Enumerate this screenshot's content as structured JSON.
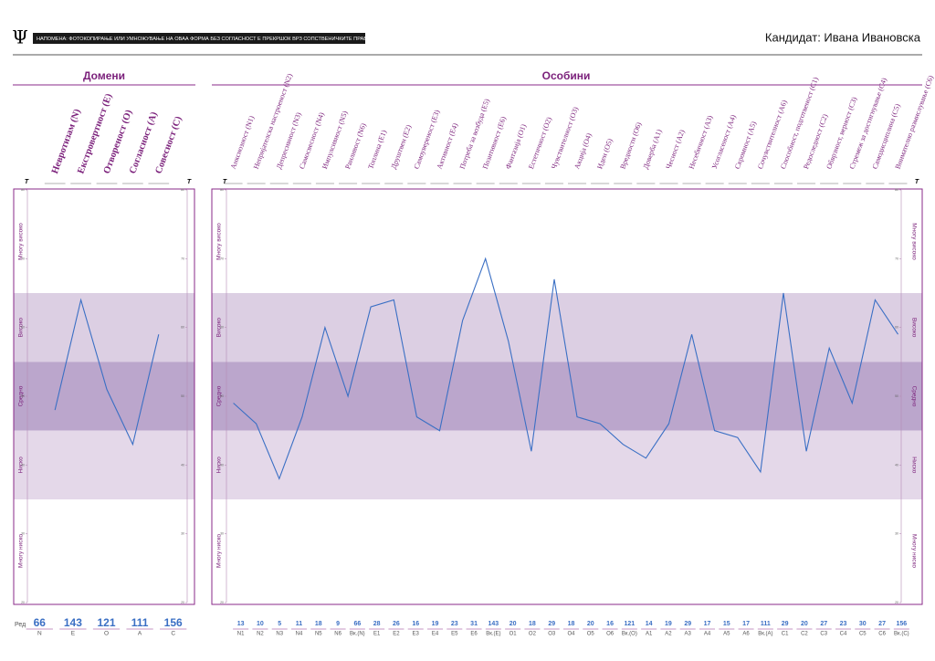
{
  "header": {
    "logo": "Ψ",
    "notice": "НАПОМЕНА: ФОТОКОПИРАЊЕ ИЛИ УМНОЖУВАЊЕ НА ОВАА ФОРМА БЕЗ СОГЛАСНОСТ Е ПРЕКРШОК ВРЗ СОПСТВЕНИЧКИТЕ ПРАВА.",
    "candidate": "Кандидат: Ивана Ивановска"
  },
  "t_label": "T",
  "chart_data": [
    {
      "type": "line",
      "title": "Домени",
      "color": "#3a6fc4",
      "categories": [
        "Невротизам (N)",
        "Екстровертност (E)",
        "Отвореност (O)",
        "Согласност (A)",
        "Совесност (C)"
      ],
      "values": [
        48,
        64,
        51,
        43,
        59
      ],
      "ylim": [
        20,
        80
      ],
      "yticks": [
        20,
        30,
        40,
        50,
        60,
        70,
        80
      ],
      "levels": [
        {
          "label": "Многу високо",
          "from": 65,
          "to": 80,
          "color": "#ffffff"
        },
        {
          "label": "Високо",
          "from": 55,
          "to": 65,
          "color": "#dccfe3"
        },
        {
          "label": "Средно",
          "from": 45,
          "to": 55,
          "color": "#bba6cc"
        },
        {
          "label": "Ниско",
          "from": 35,
          "to": 45,
          "color": "#e4d8e9"
        },
        {
          "label": "Многу ниско",
          "from": 20,
          "to": 35,
          "color": "#ffffff"
        }
      ]
    },
    {
      "type": "line",
      "title": "Особини",
      "color": "#3a6fc4",
      "categories": [
        "Анксиозност (N1)",
        "Непријателска настроеност (N2)",
        "Депресивност (N3)",
        "Самосвесност (N4)",
        "Импулсивност (N5)",
        "Ранливост (N6)",
        "Топлина (E1)",
        "Друштвен (E2)",
        "Самоувереност (E3)",
        "Активност (E4)",
        "Потреба за возбуда (E5)",
        "Позитивност (E6)",
        "Фантазија (O1)",
        "Естетичност (O2)",
        "Чувствителност (O3)",
        "Акција (O4)",
        "Идеи (O5)",
        "Вредности (O6)",
        "Доверба (A1)",
        "Чесност (A2)",
        "Несебичност (A3)",
        "Усогласеност (A4)",
        "Скромност (A5)",
        "Сочувствителност (A6)",
        "Способност, подготвеност (C1)",
        "Редоследност (C2)",
        "Обврзност, верност (C3)",
        "Стремеж за достигнување (C4)",
        "Самодисциплина (C5)",
        "Внимателно размислување (C6)"
      ],
      "values": [
        49,
        46,
        38,
        47,
        60,
        50,
        63,
        64,
        47,
        45,
        61,
        70,
        58,
        42,
        67,
        47,
        46,
        43,
        41,
        46,
        59,
        45,
        44,
        39,
        65,
        42,
        57,
        49,
        64,
        59
      ],
      "ylim": [
        20,
        80
      ],
      "yticks": [
        20,
        30,
        40,
        50,
        60,
        70,
        80
      ],
      "levels": [
        {
          "label": "Многу високо",
          "from": 65,
          "to": 80,
          "color": "#ffffff"
        },
        {
          "label": "Високо",
          "from": 55,
          "to": 65,
          "color": "#dccfe3"
        },
        {
          "label": "Средно",
          "from": 45,
          "to": 55,
          "color": "#bba6cc"
        },
        {
          "label": "Ниско",
          "from": 35,
          "to": 45,
          "color": "#e4d8e9"
        },
        {
          "label": "Многу ниско",
          "from": 20,
          "to": 35,
          "color": "#ffffff"
        }
      ]
    }
  ],
  "raw_scores": {
    "label": "Ред",
    "domains": [
      {
        "value": 66,
        "code": "N"
      },
      {
        "value": 143,
        "code": "E"
      },
      {
        "value": 121,
        "code": "O"
      },
      {
        "value": 111,
        "code": "A"
      },
      {
        "value": 156,
        "code": "C"
      }
    ],
    "facets": [
      {
        "value": 13,
        "code": "N1"
      },
      {
        "value": 10,
        "code": "N2"
      },
      {
        "value": 5,
        "code": "N3"
      },
      {
        "value": 11,
        "code": "N4"
      },
      {
        "value": 18,
        "code": "N5"
      },
      {
        "value": 9,
        "code": "N6"
      },
      {
        "value": 66,
        "code": "Вк.(N)"
      },
      {
        "value": 28,
        "code": "E1"
      },
      {
        "value": 26,
        "code": "E2"
      },
      {
        "value": 16,
        "code": "E3"
      },
      {
        "value": 19,
        "code": "E4"
      },
      {
        "value": 23,
        "code": "E5"
      },
      {
        "value": 31,
        "code": "E6"
      },
      {
        "value": 143,
        "code": "Вк.(E)"
      },
      {
        "value": 20,
        "code": "O1"
      },
      {
        "value": 18,
        "code": "O2"
      },
      {
        "value": 29,
        "code": "O3"
      },
      {
        "value": 18,
        "code": "O4"
      },
      {
        "value": 20,
        "code": "O5"
      },
      {
        "value": 16,
        "code": "O6"
      },
      {
        "value": 121,
        "code": "Вк.(O)"
      },
      {
        "value": 14,
        "code": "A1"
      },
      {
        "value": 19,
        "code": "A2"
      },
      {
        "value": 29,
        "code": "A3"
      },
      {
        "value": 17,
        "code": "A4"
      },
      {
        "value": 15,
        "code": "A5"
      },
      {
        "value": 17,
        "code": "A6"
      },
      {
        "value": 111,
        "code": "Вк.(A)"
      },
      {
        "value": 29,
        "code": "C1"
      },
      {
        "value": 20,
        "code": "C2"
      },
      {
        "value": 27,
        "code": "C3"
      },
      {
        "value": 23,
        "code": "C4"
      },
      {
        "value": 30,
        "code": "C5"
      },
      {
        "value": 27,
        "code": "C6"
      },
      {
        "value": 156,
        "code": "Вк.(C)"
      }
    ]
  }
}
